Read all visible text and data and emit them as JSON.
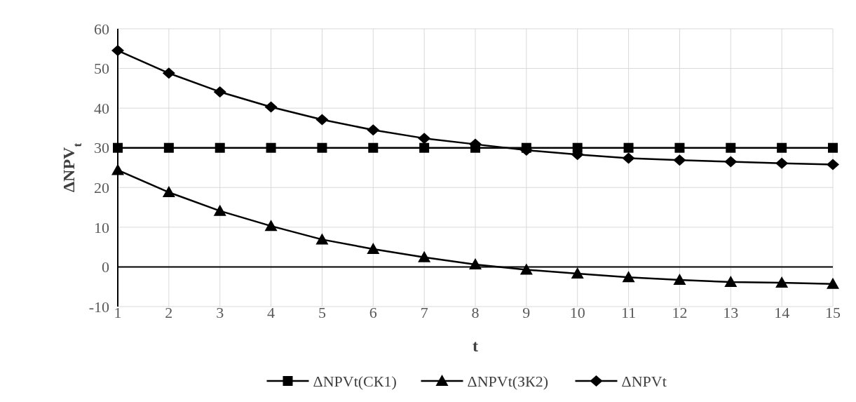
{
  "chart_data": {
    "type": "line",
    "xlabel": "t",
    "ylabel": "ΔNPV$_{t}$",
    "x": [
      1,
      2,
      3,
      4,
      5,
      6,
      7,
      8,
      9,
      10,
      11,
      12,
      13,
      14,
      15
    ],
    "series": [
      {
        "name": "ΔNPVt(СК1)",
        "color": "#000000",
        "marker": "square",
        "values": [
          30,
          30,
          30,
          30,
          30,
          30,
          30,
          30,
          30,
          30,
          30,
          30,
          30,
          30,
          30
        ]
      },
      {
        "name": "ΔNPVt(ЗК2)",
        "color": "#000000",
        "marker": "triangle",
        "values": [
          24.4,
          18.8,
          14.1,
          10.3,
          6.9,
          4.5,
          2.4,
          0.6,
          -0.7,
          -1.7,
          -2.6,
          -3.3,
          -3.8,
          -4.0,
          -4.3
        ]
      },
      {
        "name": "ΔNPVt",
        "color": "#000000",
        "marker": "diamond",
        "values": [
          54.5,
          48.8,
          44.1,
          40.3,
          37.1,
          34.5,
          32.4,
          30.9,
          29.4,
          28.3,
          27.4,
          26.9,
          26.5,
          26.1,
          25.8
        ]
      }
    ],
    "xlim": [
      1,
      15
    ],
    "xticks": [
      1,
      2,
      3,
      4,
      5,
      6,
      7,
      8,
      9,
      10,
      11,
      12,
      13,
      14,
      15
    ],
    "ylim": [
      -10,
      60
    ],
    "yticks": [
      -10,
      0,
      10,
      20,
      30,
      40,
      50,
      60
    ],
    "grid": true,
    "legend": "bottom",
    "line_style": "solid"
  }
}
